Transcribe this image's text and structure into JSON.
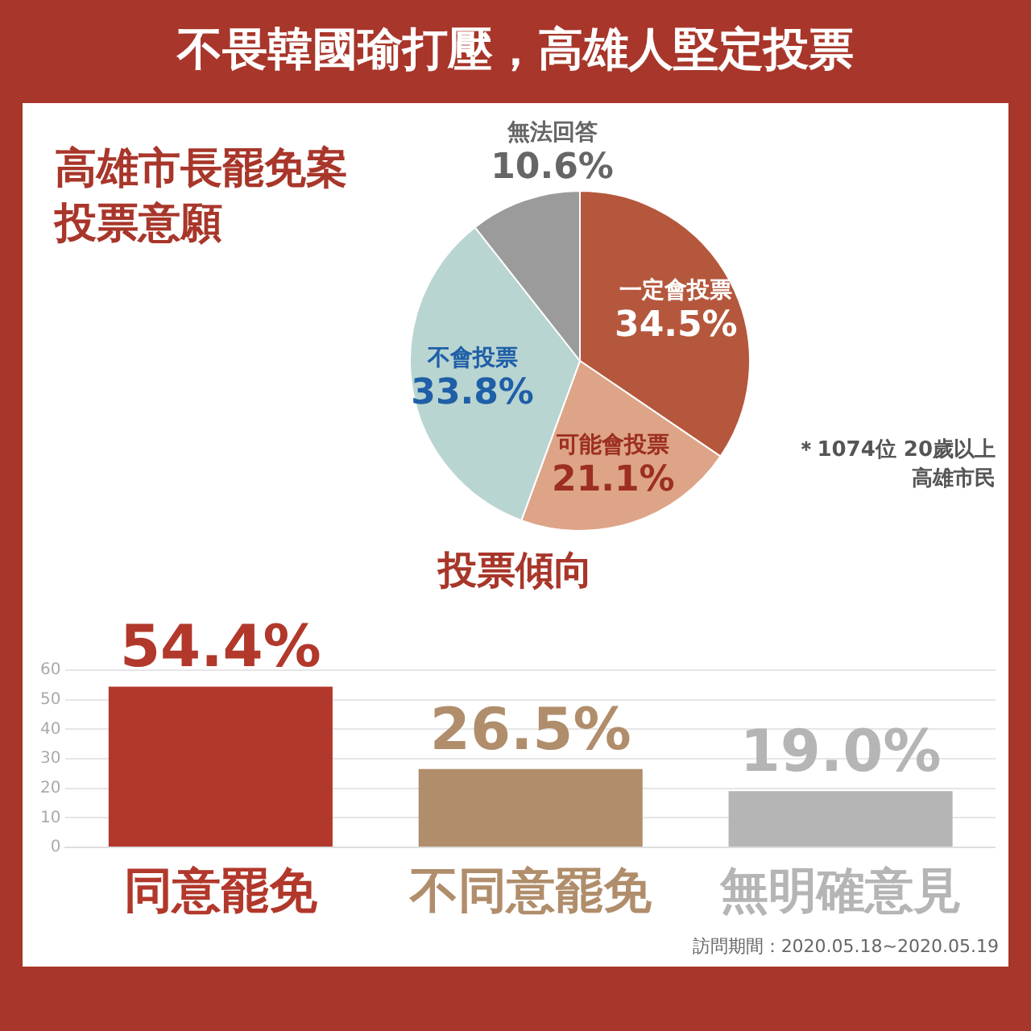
{
  "chart_data": [
    {
      "type": "pie",
      "title": "不畏韓國瑜打壓，高雄人堅定投票",
      "subtitle": "高雄市長罷免案投票意願",
      "categories": [
        "一定會投票",
        "可能會投票",
        "不會投票",
        "無法回答"
      ],
      "values": [
        34.5,
        21.1,
        33.8,
        10.6
      ],
      "colors": [
        "#b5573c",
        "#dea487",
        "#b9d5d1",
        "#9b9b9b"
      ],
      "value_labels": [
        "34.5%",
        "21.1%",
        "33.8%",
        "10.6%"
      ],
      "annotations": [
        "＊1074位 20歲以上高雄市民"
      ],
      "legend": false
    },
    {
      "type": "bar",
      "title": "投票傾向",
      "categories": [
        "同意罷免",
        "不同意罷免",
        "無明確意見"
      ],
      "values": [
        54.4,
        26.5,
        19.0
      ],
      "colors": [
        "#b1382b",
        "#b08d6b",
        "#b5b5b5"
      ],
      "value_labels": [
        "54.4%",
        "26.5%",
        "19.0%"
      ],
      "ylim": [
        0,
        60
      ],
      "yticks": [
        0,
        10,
        20,
        30,
        40,
        50,
        60
      ],
      "grid": "y",
      "legend": false,
      "annotations": [
        "訪問期間：2020.05.18~2020.05.19"
      ]
    }
  ]
}
